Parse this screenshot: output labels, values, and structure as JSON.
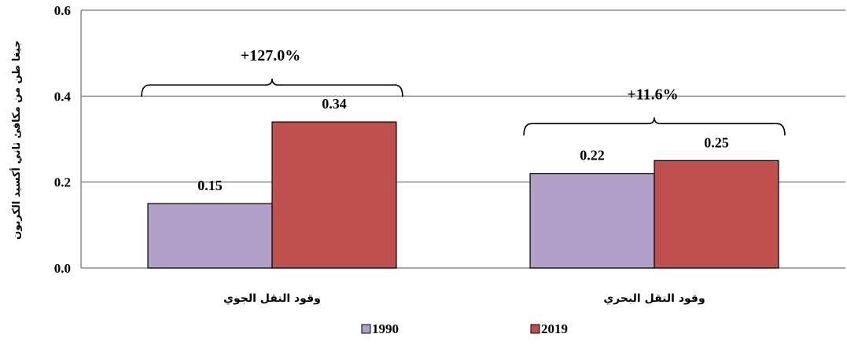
{
  "chart_data": {
    "type": "bar",
    "ylabel": "جيغا طن من مكافئ ثاني أكسيد الكربون",
    "ylim": [
      0,
      0.6
    ],
    "yticks": [
      "0.0",
      "0.2",
      "0.4",
      "0.6"
    ],
    "grid": true,
    "legend_position": "bottom",
    "categories": [
      "وقود النقل الجوي",
      "وقود النقل البحري"
    ],
    "series": [
      {
        "name": "1990",
        "color": "#B1A0C7",
        "values": [
          0.15,
          0.22
        ],
        "labels": [
          "0.15",
          "0.22"
        ]
      },
      {
        "name": "2019",
        "color": "#C0504D",
        "values": [
          0.34,
          0.25
        ],
        "labels": [
          "0.34",
          "0.25"
        ]
      }
    ],
    "annotations": [
      {
        "category": 0,
        "text": "+127.0%"
      },
      {
        "category": 1,
        "text": "+11.6%"
      }
    ]
  }
}
